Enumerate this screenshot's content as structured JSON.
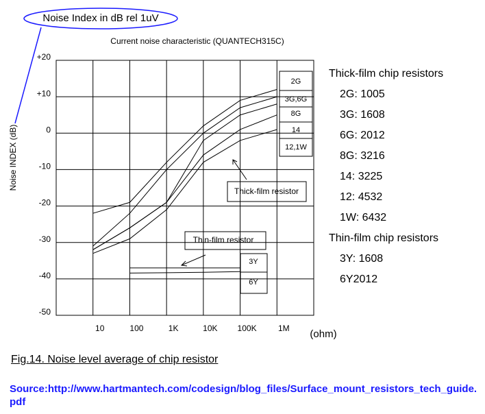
{
  "chart_data": {
    "type": "line",
    "title": "Current noise characteristic (QUANTECH315C)",
    "annotation_oval": "Noise Index in dB rel 1uV",
    "ylabel": "Noise INDEX (dB)",
    "xlabel": "(ohm)",
    "xscale": "log",
    "grid": true,
    "x": [
      10,
      100,
      1000,
      10000,
      100000,
      1000000
    ],
    "xlim": [
      1,
      10000000
    ],
    "xticks": [
      10,
      100,
      {
        "value": 1000,
        "label": "1K"
      },
      {
        "value": 10000,
        "label": "10K"
      },
      {
        "value": 100000,
        "label": "100K"
      },
      {
        "value": 1000000,
        "label": "1M"
      }
    ],
    "ylim": [
      -50,
      20
    ],
    "yticks": [
      -50,
      -40,
      -30,
      -20,
      -10,
      0,
      {
        "value": 10,
        "label": "+10"
      },
      {
        "value": 20,
        "label": "+20"
      }
    ],
    "series": [
      {
        "name": "2G",
        "color": "#000000",
        "values": [
          -22,
          -19,
          -8,
          2,
          9,
          12
        ]
      },
      {
        "name": "3G,6G",
        "color": "#000000",
        "values": [
          -31,
          -22,
          -10,
          0,
          7,
          10
        ]
      },
      {
        "name": "8G",
        "color": "#000000",
        "values": [
          -32,
          -26,
          -19,
          -2,
          5,
          8
        ]
      },
      {
        "name": "14",
        "color": "#000000",
        "values": [
          -32,
          -26,
          -19,
          -6,
          1,
          5
        ]
      },
      {
        "name": "12,1W",
        "color": "#000000",
        "values": [
          -33,
          -29,
          -21,
          -8,
          -2,
          1
        ]
      },
      {
        "name": "3Y",
        "color": "#000000",
        "values": [
          null,
          -37,
          -37,
          -37,
          -37,
          null
        ]
      },
      {
        "name": "6Y",
        "color": "#000000",
        "values": [
          null,
          -38.4,
          -38.3,
          -38.2,
          -38,
          null
        ]
      }
    ],
    "annotations": [
      "Thick-film resistor",
      "Thin-film resistor"
    ],
    "notes": [
      "Thick-film chip resistors",
      "2G: 1005",
      "3G: 1608",
      "6G: 2012",
      "8G: 3216",
      "14: 3225",
      "12: 4532",
      "1W: 6432",
      "Thin-film chip resistors",
      "3Y: 1608",
      "6Y2012"
    ],
    "caption": "Fig.14. Noise level average of chip resistor",
    "source": "Source:http://www.hartmantech.com/codesign/blog_files/Surface_mount_resistors_tech_guide.pdf"
  }
}
